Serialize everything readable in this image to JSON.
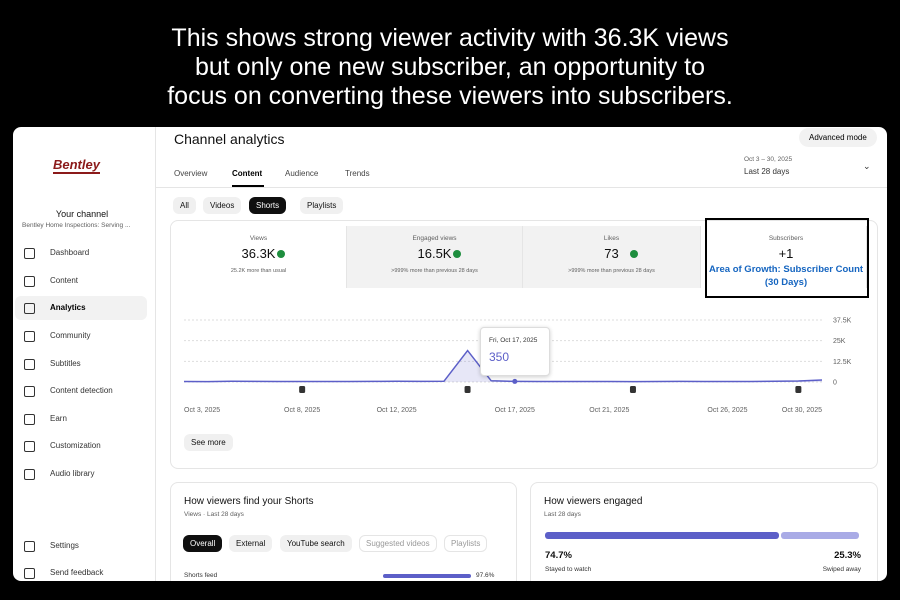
{
  "caption_lines": [
    "This shows strong viewer activity with 36.3K views",
    "but only one new subscriber, an opportunity to",
    "focus on converting these viewers into subscribers."
  ],
  "sidebar": {
    "logo": "Bentley",
    "channel_label": "Your channel",
    "channel_name": "Bentley Home Inspections: Serving ...",
    "nav": [
      "Dashboard",
      "Content",
      "Analytics",
      "Community",
      "Subtitles",
      "Content detection",
      "Earn",
      "Customization",
      "Audio library"
    ],
    "bottom": [
      "Settings",
      "Send feedback"
    ]
  },
  "header": {
    "title": "Channel analytics",
    "advanced": "Advanced mode",
    "tabs": [
      "Overview",
      "Content",
      "Audience",
      "Trends"
    ]
  },
  "date_range": {
    "range": "Oct 3 – 30, 2025",
    "label": "Last 28 days"
  },
  "filters": [
    "All",
    "Videos",
    "Shorts",
    "Playlists"
  ],
  "metrics": [
    {
      "label": "Views",
      "value": "36.3K",
      "note": "25.2K more than usual"
    },
    {
      "label": "Engaged views",
      "value": "16.5K",
      "note": ">999% more than previous 28 days"
    },
    {
      "label": "Likes",
      "value": "73",
      "note": ">999% more than previous 28 days"
    },
    {
      "label": "Subscribers",
      "value": "+1",
      "note": "Area of Growth: Subscriber Count (30 Days)"
    }
  ],
  "chart_data": {
    "type": "line",
    "categories": [
      "Oct 3, 2025",
      null,
      null,
      null,
      null,
      "Oct 8, 2025",
      null,
      null,
      null,
      "Oct 12, 2025",
      null,
      null,
      null,
      null,
      "Oct 17, 2025",
      null,
      null,
      null,
      "Oct 21, 2025",
      null,
      null,
      null,
      null,
      "Oct 26, 2025",
      null,
      null,
      null,
      "Oct 30, 2025"
    ],
    "series": [
      {
        "name": "Views",
        "color": "#5c5fc8",
        "values": [
          300,
          250,
          400,
          350,
          300,
          280,
          320,
          300,
          350,
          400,
          380,
          420,
          19000,
          700,
          350,
          300,
          280,
          300,
          320,
          260,
          300,
          350,
          300,
          280,
          320,
          400,
          600,
          1200
        ]
      }
    ],
    "ylim": [
      0,
      37500
    ],
    "yticks": [
      0,
      {
        "value": 12500,
        "label": "12.5K"
      },
      {
        "value": 25000,
        "label": "25K"
      },
      {
        "value": 37500,
        "label": "37.5K"
      }
    ],
    "grid": true,
    "tooltip_date": "Fri, Oct 17, 2025"
  },
  "see_more": "See more",
  "traffic": {
    "title": "How viewers find your Shorts",
    "subtitle": "Views · Last 28 days",
    "chips": [
      "Overall",
      "External",
      "YouTube search",
      "Suggested videos",
      "Playlists"
    ],
    "rows": [
      {
        "label": "Shorts feed",
        "value": 97.6,
        "value_label": "97.6%"
      }
    ]
  },
  "engaged": {
    "title": "How viewers engaged",
    "subtitle": "Last 28 days",
    "parts": [
      {
        "name": "Stayed to watch",
        "value": 74.7,
        "value_label": "74.7%",
        "color": "#5c5fc8"
      },
      {
        "name": "Swiped away",
        "value": 25.3,
        "value_label": "25.3%",
        "color": "#a9abe6"
      }
    ]
  }
}
